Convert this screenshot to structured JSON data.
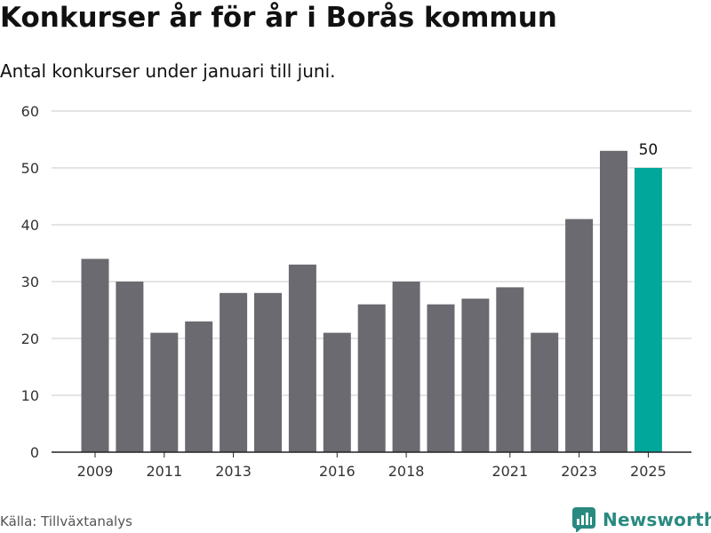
{
  "title": "Konkurser år för år i Borås kommun",
  "subtitle": "Antal konkurser under januari till juni.",
  "source": "Källa: Tillväxtanalys",
  "brand": {
    "name": "Newsworthy",
    "icon": "newsworthy-logo-icon",
    "color": "#2a8a80"
  },
  "colors": {
    "bar": "#6b6a70",
    "highlight": "#00a79a",
    "grid": "#dcdcdc",
    "axis": "#222222"
  },
  "chart_data": {
    "type": "bar",
    "x": [
      2009,
      2010,
      2011,
      2012,
      2013,
      2014,
      2015,
      2016,
      2017,
      2018,
      2019,
      2020,
      2021,
      2022,
      2023,
      2024,
      2025
    ],
    "values": [
      34,
      30,
      21,
      23,
      28,
      28,
      33,
      21,
      26,
      30,
      26,
      27,
      29,
      21,
      41,
      53,
      50
    ],
    "x_tick_labels": [
      "2009",
      "2011",
      "2013",
      "2016",
      "2018",
      "2021",
      "2023",
      "2025"
    ],
    "y_ticks": [
      0,
      10,
      20,
      30,
      40,
      50,
      60
    ],
    "ylim": [
      0,
      60
    ],
    "highlight": {
      "x": 2025,
      "label": "50"
    },
    "grid": true,
    "legend": false,
    "xlabel": "",
    "ylabel": ""
  }
}
